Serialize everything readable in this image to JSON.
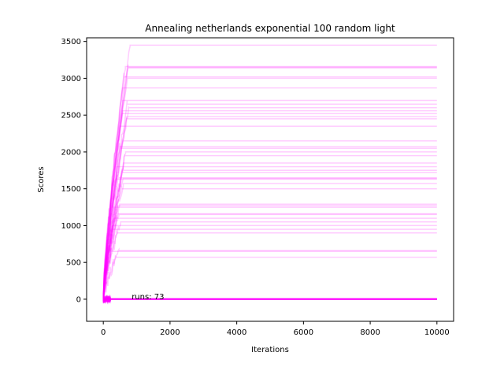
{
  "chart_data": {
    "type": "line",
    "title": "Annealing netherlands exponential 100 random light",
    "xlabel": "Iterations",
    "ylabel": "Scores",
    "xlim": [
      -500,
      10500
    ],
    "ylim": [
      -300,
      3550
    ],
    "x_ticks": [
      0,
      2000,
      4000,
      6000,
      8000,
      10000
    ],
    "y_ticks": [
      0,
      500,
      1000,
      1500,
      2000,
      2500,
      3000,
      3500
    ],
    "grid": false,
    "color": "#ff00ff",
    "series_alpha": 0.2,
    "annotation": {
      "text": "runs: 73",
      "x": 850,
      "y": 0
    },
    "iterations": 10000,
    "series_count": 73,
    "final_scores": [
      3450,
      3160,
      3150,
      3140,
      3020,
      3000,
      2870,
      2700,
      2650,
      2600,
      2560,
      2520,
      2480,
      2450,
      2350,
      2150,
      2070,
      2050,
      2000,
      1950,
      1850,
      1800,
      1750,
      1720,
      1650,
      1640,
      1630,
      1570,
      1500,
      1290,
      1270,
      1250,
      1160,
      1150,
      1100,
      1050,
      1000,
      950,
      900,
      660,
      650,
      570,
      10,
      8,
      6,
      5,
      4,
      3,
      2,
      1,
      0,
      0,
      0,
      0,
      0,
      0,
      0,
      0,
      0,
      0,
      0,
      0,
      0,
      0,
      0,
      0,
      0,
      0,
      0,
      0,
      0,
      0,
      0
    ]
  }
}
